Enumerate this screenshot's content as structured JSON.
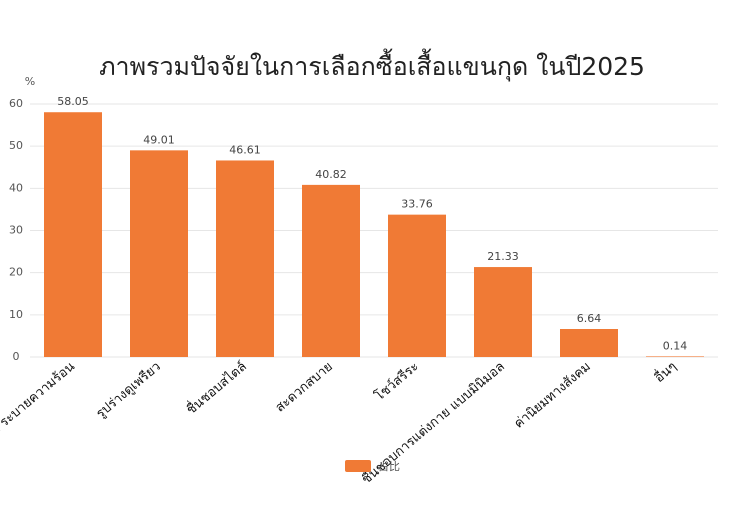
{
  "chart_data": {
    "type": "bar",
    "title": "ภาพรวมปัจจัยในการเลือกซื้อเสื้อแขนกุด ในปี2025",
    "y_label": "%",
    "categories": [
      "เย็นสบาย ระบายความร้อน",
      "รูปร่างดูเพรียว",
      "ชื่นชอบสไตล์",
      "สะดวกสบาย",
      "โชว์สรีระ",
      "ชื่นชอบการแต่งกาย แบบมินิมอล",
      "ค่านิยมทางสังคม",
      "อื่นๆ"
    ],
    "series": [
      {
        "name": "占比",
        "color": "#f07a35",
        "values": [
          58.05,
          49.01,
          46.61,
          40.82,
          33.76,
          21.33,
          6.64,
          0.14
        ]
      }
    ],
    "ylim": [
      0,
      60
    ],
    "yticks": [
      0,
      10,
      20,
      30,
      40,
      50,
      60
    ],
    "grid": true,
    "legend": "bottom"
  }
}
